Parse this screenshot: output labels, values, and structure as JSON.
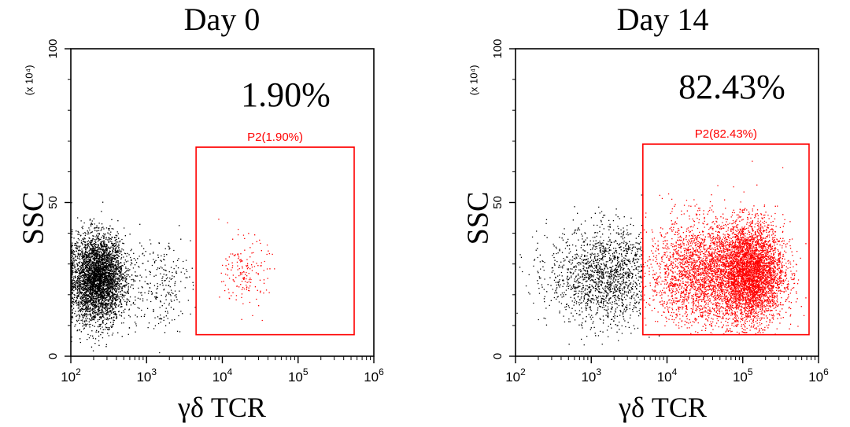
{
  "figure": {
    "x_scale": "log10",
    "colors": {
      "ungated": "#000000",
      "gate": "#ff0000",
      "axis": "#000000"
    }
  },
  "chart_data": [
    {
      "type": "scatter",
      "title": "Day 0",
      "xlabel": "γδ TCR",
      "ylabel": "SSC",
      "y_multiplier": "(x 10⁴)",
      "xlim": [
        100,
        1000000
      ],
      "ylim": [
        0,
        100
      ],
      "x_ticks": [
        {
          "value": 100,
          "base": "10",
          "exp": "2"
        },
        {
          "value": 1000,
          "base": "10",
          "exp": "3"
        },
        {
          "value": 10000,
          "base": "10",
          "exp": "4"
        },
        {
          "value": 100000,
          "base": "10",
          "exp": "5"
        },
        {
          "value": 1000000,
          "base": "10",
          "exp": "6"
        }
      ],
      "y_ticks": [
        0,
        50,
        100
      ],
      "percent_label": "1.90%",
      "gate": {
        "name": "P2",
        "label": "P2(1.90%)",
        "x_range": [
          4500,
          550000
        ],
        "y_range": [
          7,
          68
        ]
      },
      "populations": [
        {
          "name": "ungated-main",
          "gated": false,
          "center_log_x": 2.35,
          "sd_log_x": 0.18,
          "center_y": 25,
          "sd_y": 7,
          "count": 5200
        },
        {
          "name": "ungated-tail",
          "gated": false,
          "center_log_x": 3.15,
          "sd_log_x": 0.22,
          "center_y": 24,
          "sd_y": 8,
          "count": 260
        },
        {
          "name": "gated-P2",
          "gated": true,
          "center_log_x": 4.3,
          "sd_log_x": 0.15,
          "center_y": 27,
          "sd_y": 5.5,
          "count": 170
        }
      ]
    },
    {
      "type": "scatter",
      "title": "Day 14",
      "xlabel": "γδ TCR",
      "ylabel": "SSC",
      "y_multiplier": "(x 10⁴)",
      "xlim": [
        100,
        1000000
      ],
      "ylim": [
        0,
        100
      ],
      "x_ticks": [
        {
          "value": 100,
          "base": "10",
          "exp": "2"
        },
        {
          "value": 1000,
          "base": "10",
          "exp": "3"
        },
        {
          "value": 10000,
          "base": "10",
          "exp": "4"
        },
        {
          "value": 100000,
          "base": "10",
          "exp": "5"
        },
        {
          "value": 1000000,
          "base": "10",
          "exp": "6"
        }
      ],
      "y_ticks": [
        0,
        50,
        100
      ],
      "percent_label": "82.43%",
      "gate": {
        "name": "P2",
        "label": "P2(82.43%)",
        "x_range": [
          4800,
          750000
        ],
        "y_range": [
          7,
          69
        ]
      },
      "populations": [
        {
          "name": "ungated-spread",
          "gated": false,
          "center_log_x": 3.2,
          "sd_log_x": 0.38,
          "center_y": 26,
          "sd_y": 8,
          "count": 1800
        },
        {
          "name": "gated-high",
          "gated": true,
          "center_log_x": 5.1,
          "sd_log_x": 0.22,
          "center_y": 27,
          "sd_y": 8,
          "count": 4200
        },
        {
          "name": "gated-broad",
          "gated": true,
          "center_log_x": 4.45,
          "sd_log_x": 0.35,
          "center_y": 27,
          "sd_y": 8.5,
          "count": 2600
        }
      ]
    }
  ]
}
